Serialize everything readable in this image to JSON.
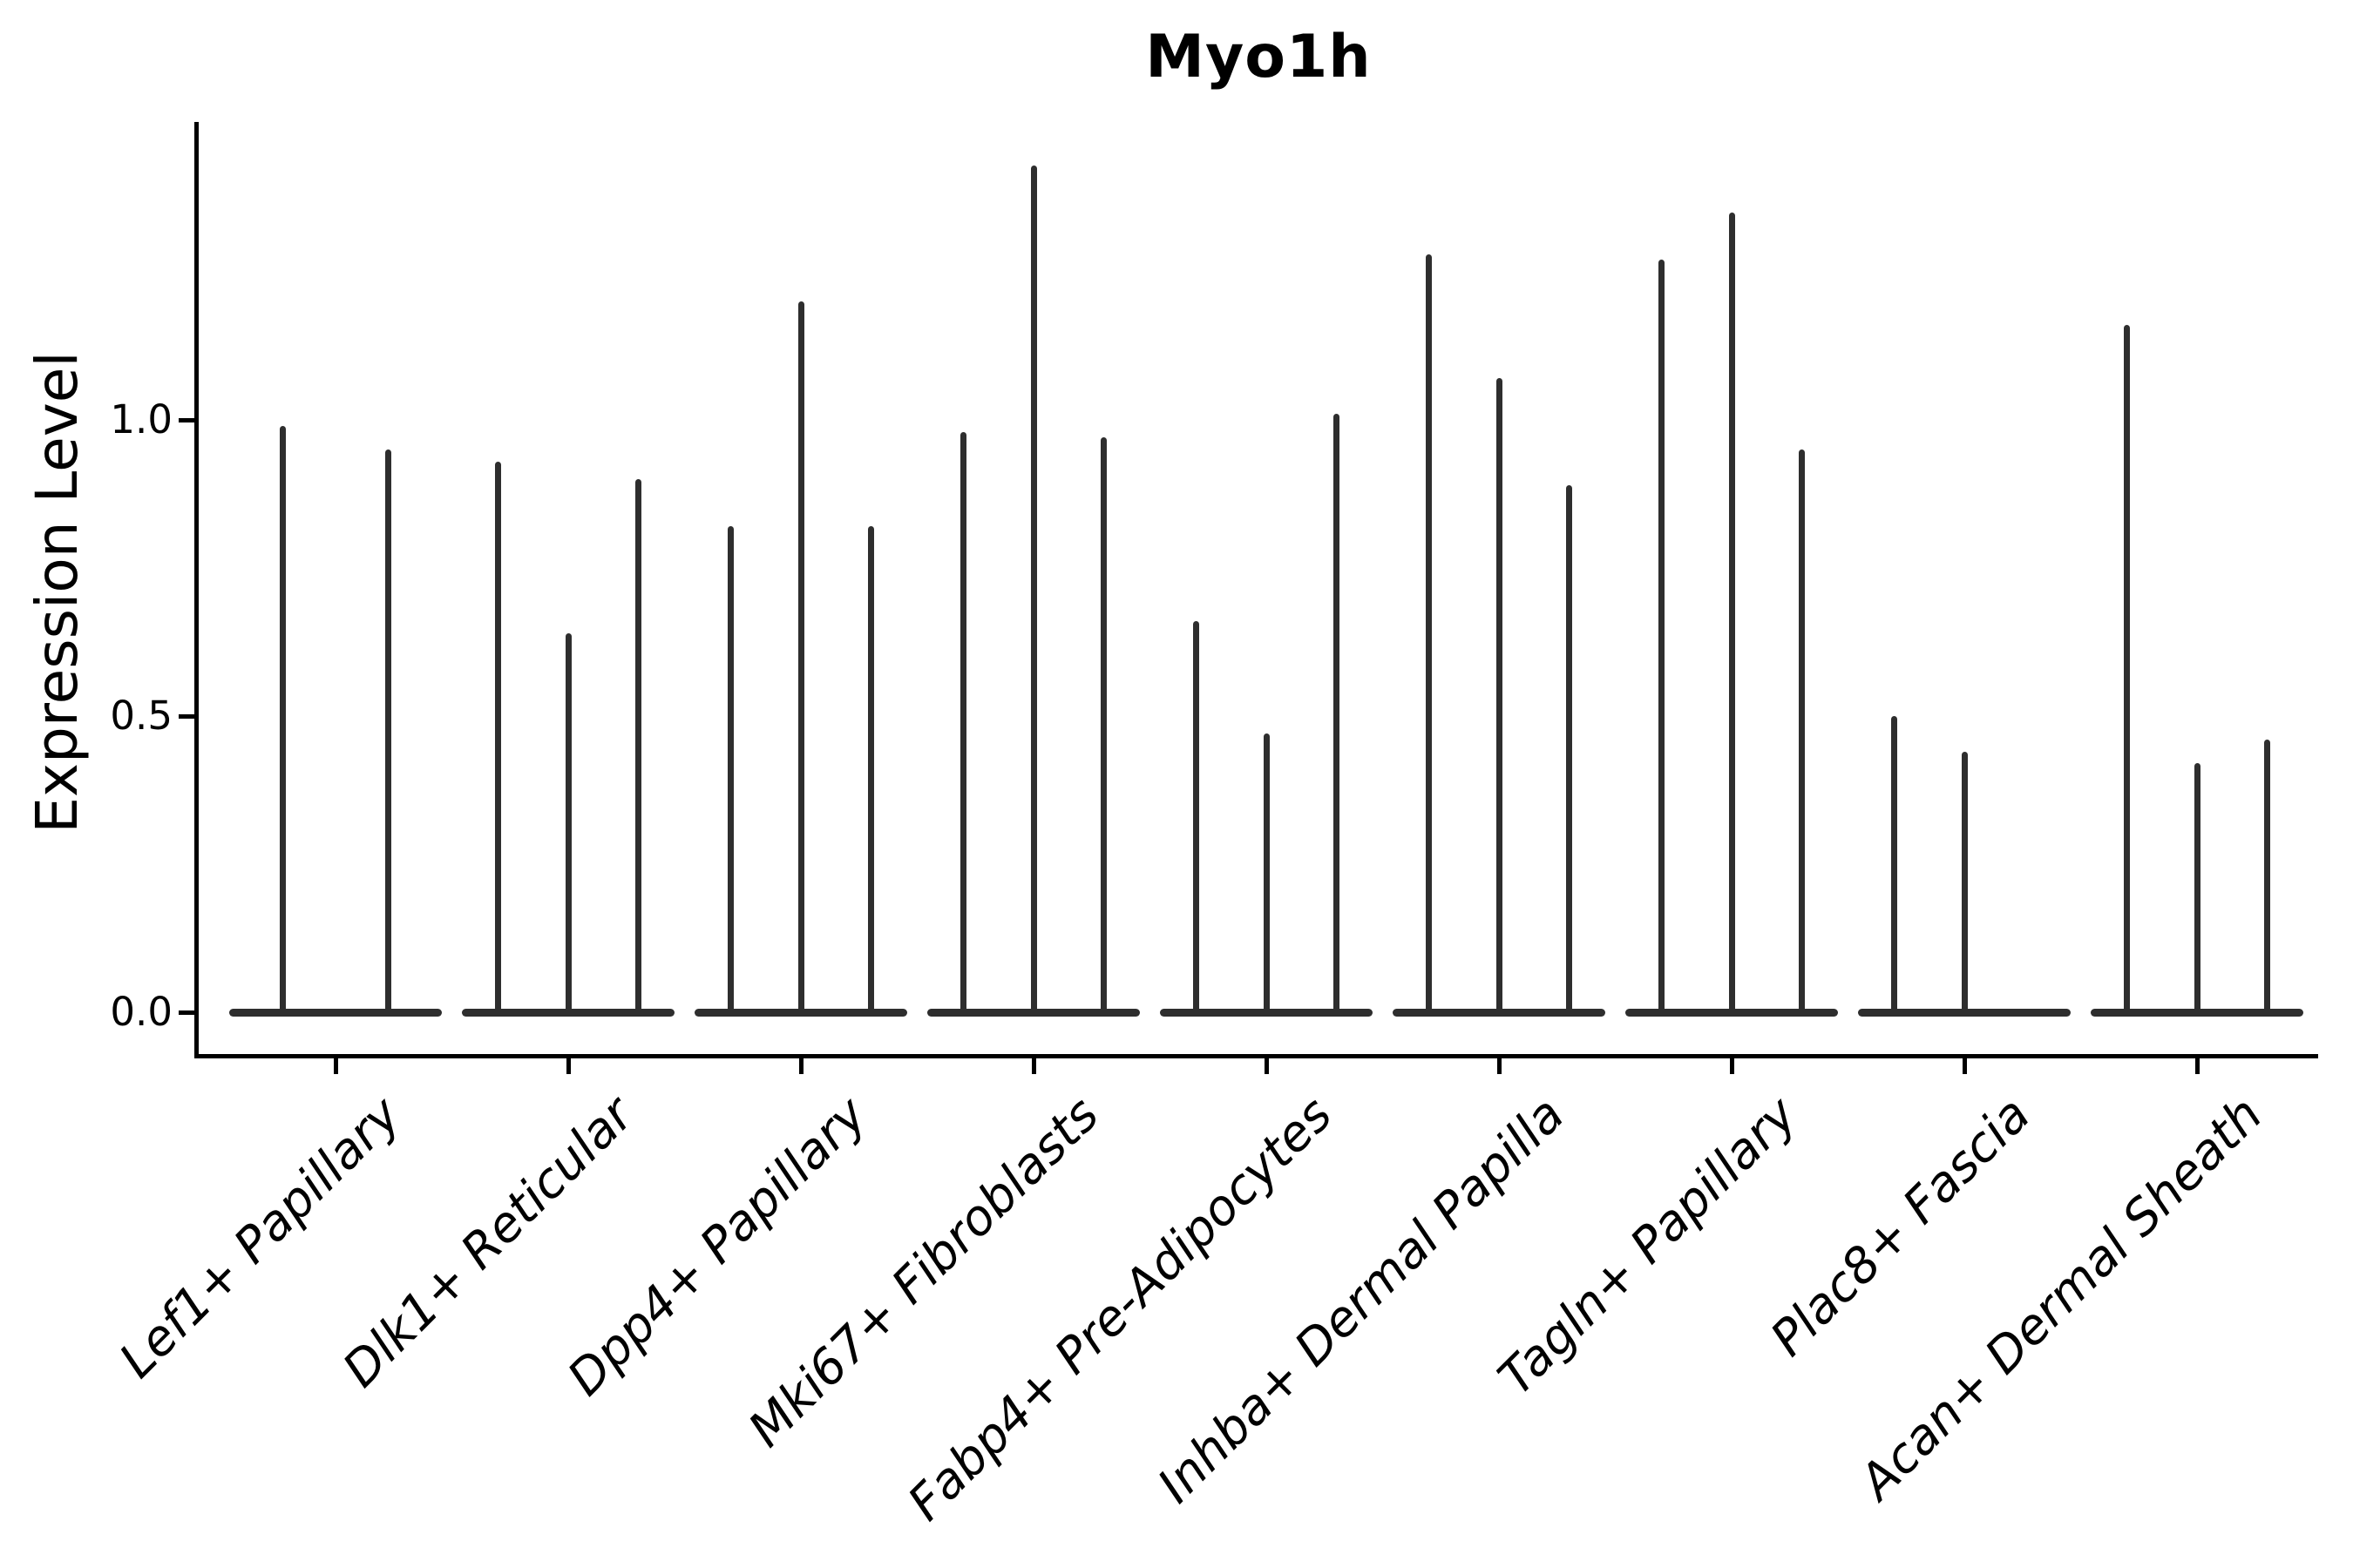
{
  "chart_data": {
    "type": "violin",
    "title": "Myo1h",
    "xlabel": "",
    "ylabel": "Expression Level",
    "yticks": [
      0.0,
      0.5,
      1.0
    ],
    "ylim": [
      -0.07,
      1.5
    ],
    "grid": false,
    "legend": "none",
    "description": "Violin plot of Myo1h expression; distributions are concentrated at 0 (wide flat base) with thin spikes up to the maximum expression of each violin. Offsets are fractions of the category slot width.",
    "categories": [
      "Lef1+ Papillary",
      "Dlk1+ Reticular",
      "Dpp4+ Papillary",
      "Mki67+ Fibroblasts",
      "Fabp4+ Pre-Adipocytes",
      "Inhba+ Dermal Papilla",
      "Tagln+ Papillary",
      "Plac8+ Fascia",
      "Acan+ Dermal Sheath"
    ],
    "groups": [
      {
        "category": "Lef1+ Papillary",
        "violins": [
          {
            "offset": -0.225,
            "max": 0.99
          },
          {
            "offset": 0.225,
            "max": 0.95
          }
        ]
      },
      {
        "category": "Dlk1+ Reticular",
        "violins": [
          {
            "offset": -0.3,
            "max": 0.93
          },
          {
            "offset": 0,
            "max": 0.64
          },
          {
            "offset": 0.3,
            "max": 0.9
          }
        ]
      },
      {
        "category": "Dpp4+ Papillary",
        "violins": [
          {
            "offset": -0.3,
            "max": 0.82
          },
          {
            "offset": 0,
            "max": 1.2
          },
          {
            "offset": 0.3,
            "max": 0.82
          }
        ]
      },
      {
        "category": "Mki67+ Fibroblasts",
        "violins": [
          {
            "offset": -0.3,
            "max": 0.98
          },
          {
            "offset": 0,
            "max": 1.43
          },
          {
            "offset": 0.3,
            "max": 0.97
          }
        ]
      },
      {
        "category": "Fabp4+ Pre-Adipocytes",
        "violins": [
          {
            "offset": -0.3,
            "max": 0.66
          },
          {
            "offset": 0,
            "max": 0.47
          },
          {
            "offset": 0.3,
            "max": 1.01
          }
        ]
      },
      {
        "category": "Inhba+ Dermal Papilla",
        "violins": [
          {
            "offset": -0.3,
            "max": 1.28
          },
          {
            "offset": 0,
            "max": 1.07
          },
          {
            "offset": 0.3,
            "max": 0.89
          }
        ]
      },
      {
        "category": "Tagln+ Papillary",
        "violins": [
          {
            "offset": -0.3,
            "max": 1.27
          },
          {
            "offset": 0,
            "max": 1.35
          },
          {
            "offset": 0.3,
            "max": 0.95
          }
        ]
      },
      {
        "category": "Plac8+ Fascia",
        "violins": [
          {
            "offset": -0.3,
            "max": 0.5
          },
          {
            "offset": 0,
            "max": 0.44
          }
        ]
      },
      {
        "category": "Acan+ Dermal Sheath",
        "violins": [
          {
            "offset": -0.3,
            "max": 1.16
          },
          {
            "offset": 0,
            "max": 0.42
          },
          {
            "offset": 0.3,
            "max": 0.46
          }
        ]
      }
    ],
    "colors": {
      "violin": "#2e2e2e",
      "axis": "#000000",
      "text": "#000000",
      "background": "#ffffff"
    }
  }
}
